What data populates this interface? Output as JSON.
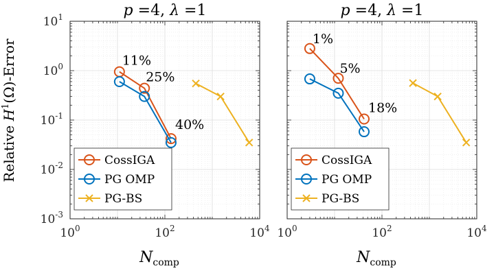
{
  "chart_data": [
    {
      "type": "line",
      "title": "p =4, λ =1",
      "title_p": "p",
      "title_eq1": " =4, ",
      "title_lambda": "λ",
      "title_eq2": " =1",
      "xlabel": "N_comp",
      "xlabel_main": "N",
      "xlabel_sub": "comp",
      "ylabel": "Relative H^1(Ω)-Error",
      "ylabel_pre": "Relative ",
      "ylabel_H": "H",
      "ylabel_sup": "1",
      "ylabel_post": "(Ω)-Error",
      "x_scale": "log",
      "y_scale": "log",
      "xlim": [
        1,
        10000
      ],
      "ylim": [
        0.001,
        10
      ],
      "grid": true,
      "legend_position": "lower-left",
      "x_ticks": [
        {
          "value": 1,
          "base": "10",
          "exp": "0"
        },
        {
          "value": 100,
          "base": "10",
          "exp": "2"
        },
        {
          "value": 10000,
          "base": "10",
          "exp": "4"
        }
      ],
      "y_ticks": [
        {
          "value": 0.001,
          "base": "10",
          "exp": "-3"
        },
        {
          "value": 0.01,
          "base": "10",
          "exp": "-2"
        },
        {
          "value": 0.1,
          "base": "10",
          "exp": "-1"
        },
        {
          "value": 1,
          "base": "10",
          "exp": "0"
        },
        {
          "value": 10,
          "base": "10",
          "exp": "1"
        }
      ],
      "series": [
        {
          "name": "CossIGA",
          "color": "#d95319",
          "marker": "circle",
          "x": [
            11,
            37,
            135
          ],
          "y": [
            0.95,
            0.44,
            0.042
          ],
          "labels": [
            "11%",
            "25%",
            "40%"
          ]
        },
        {
          "name": "PG OMP",
          "color": "#0072bd",
          "marker": "circle",
          "x": [
            11,
            37,
            135
          ],
          "y": [
            0.6,
            0.3,
            0.035
          ]
        },
        {
          "name": "PG-BS",
          "color": "#edb120",
          "marker": "x",
          "x": [
            450,
            1500,
            6000
          ],
          "y": [
            0.55,
            0.3,
            0.035
          ]
        }
      ]
    },
    {
      "type": "line",
      "title": "p =4, λ =1",
      "title_p": "p",
      "title_eq1": " =4, ",
      "title_lambda": "λ",
      "title_eq2": " =1",
      "xlabel": "N_comp",
      "xlabel_main": "N",
      "xlabel_sub": "comp",
      "x_scale": "log",
      "y_scale": "log",
      "xlim": [
        1,
        10000
      ],
      "ylim": [
        0.001,
        10
      ],
      "grid": true,
      "legend_position": "lower-left",
      "x_ticks": [
        {
          "value": 1,
          "base": "10",
          "exp": "0"
        },
        {
          "value": 100,
          "base": "10",
          "exp": "2"
        },
        {
          "value": 10000,
          "base": "10",
          "exp": "4"
        }
      ],
      "series": [
        {
          "name": "CossIGA",
          "color": "#d95319",
          "marker": "circle",
          "x": [
            3,
            12,
            42
          ],
          "y": [
            2.8,
            0.7,
            0.105
          ],
          "labels": [
            "1%",
            "5%",
            "18%"
          ]
        },
        {
          "name": "PG OMP",
          "color": "#0072bd",
          "marker": "circle",
          "x": [
            3,
            12,
            42
          ],
          "y": [
            0.68,
            0.35,
            0.058
          ]
        },
        {
          "name": "PG-BS",
          "color": "#edb120",
          "marker": "x",
          "x": [
            450,
            1500,
            6000
          ],
          "y": [
            0.56,
            0.3,
            0.035
          ]
        }
      ]
    }
  ]
}
